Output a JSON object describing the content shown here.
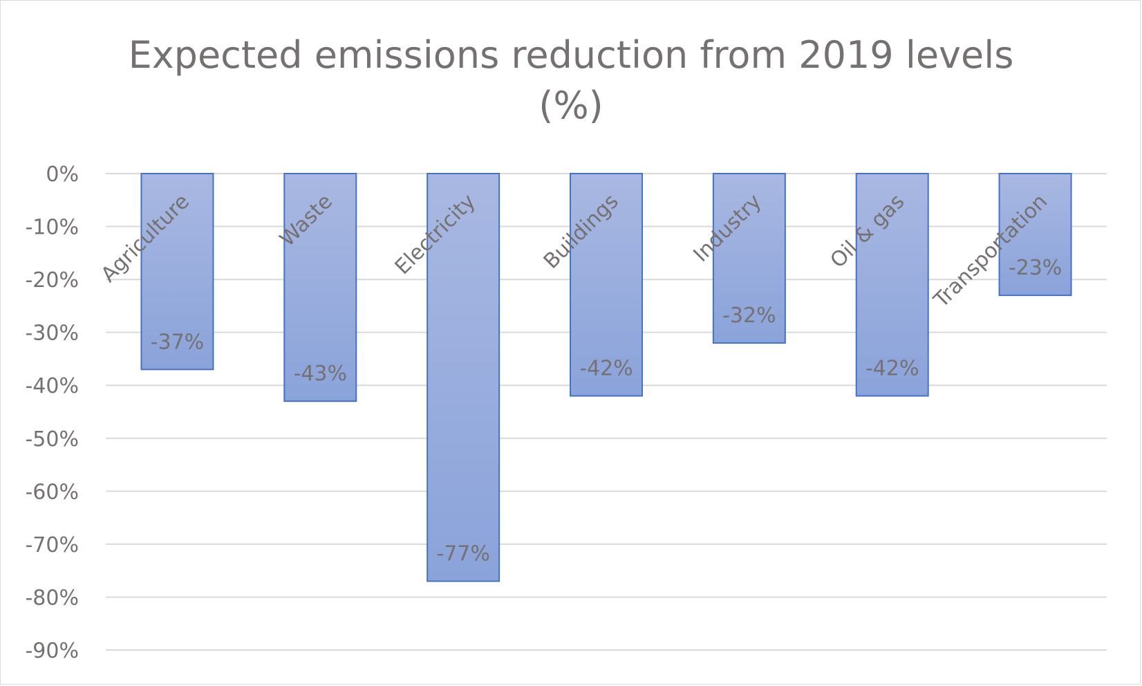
{
  "chart_data": {
    "type": "bar",
    "title": "Expected emissions reduction from 2019 levels",
    "title_line2": "(%)",
    "categories": [
      "Agriculture",
      "Waste",
      "Electricity",
      "Buildings",
      "Industry",
      "Oil & gas",
      "Transportation"
    ],
    "values": [
      -37,
      -43,
      -77,
      -42,
      -32,
      -42,
      -23
    ],
    "data_labels": [
      "-37%",
      "-43%",
      "-77%",
      "-42%",
      "-32%",
      "-42%",
      "-23%"
    ],
    "y_ticks": [
      0,
      -10,
      -20,
      -30,
      -40,
      -50,
      -60,
      -70,
      -80,
      -90
    ],
    "y_tick_labels": [
      "0%",
      "-10%",
      "-20%",
      "-30%",
      "-40%",
      "-50%",
      "-60%",
      "-70%",
      "-80%",
      "-90%"
    ],
    "ylim": [
      -90,
      0
    ],
    "xlabel": "",
    "ylabel": "",
    "grid": true,
    "legend": "none",
    "colors": {
      "bar_fill_top": "#a9b8e2",
      "bar_fill_bottom": "#8aa3da",
      "bar_stroke": "#4472c4",
      "text": "#767171",
      "grid": "#d9d9d9"
    }
  }
}
